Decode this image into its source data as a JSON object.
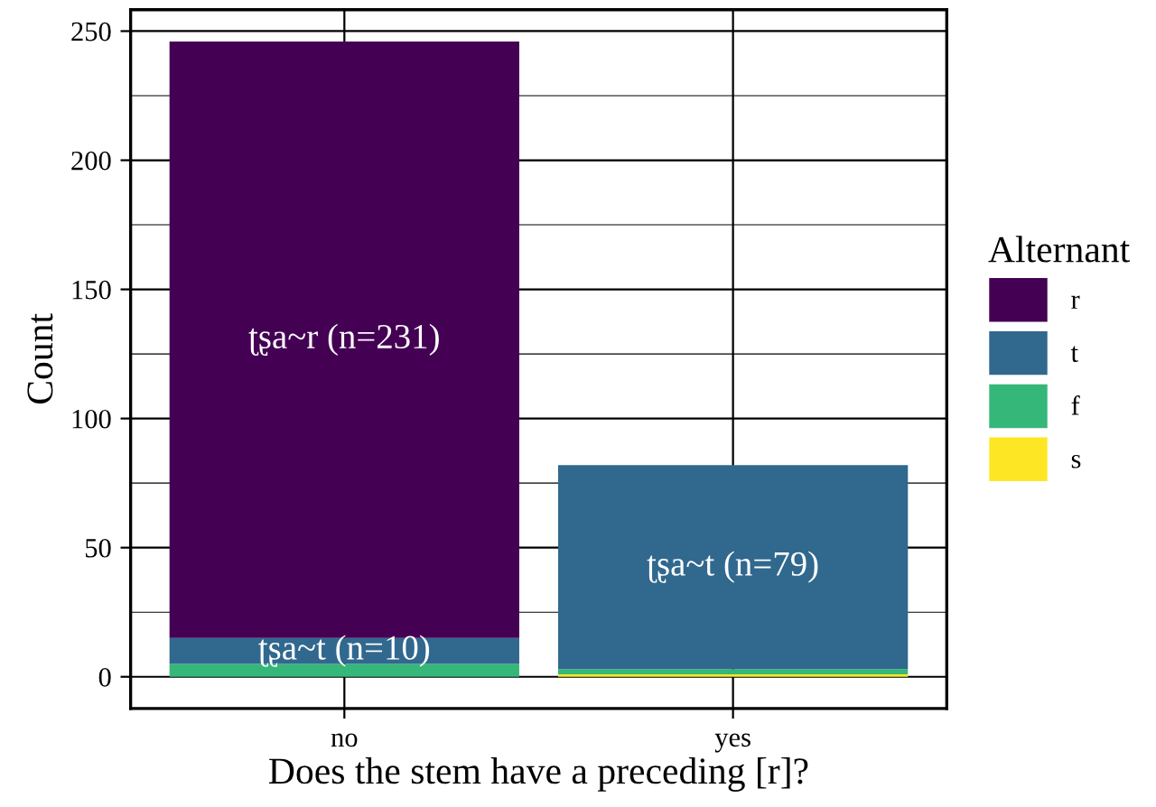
{
  "chart_data": {
    "type": "bar",
    "stacked": true,
    "xlabel": "Does the stem have a preceding [r]?",
    "ylabel": "Count",
    "legend_title": "Alternant",
    "categories": [
      "no",
      "yes"
    ],
    "series": [
      {
        "name": "s",
        "color": "#fde725",
        "values": [
          0,
          1
        ]
      },
      {
        "name": "f",
        "color": "#35b779",
        "values": [
          5,
          2
        ]
      },
      {
        "name": "t",
        "color": "#31688e",
        "values": [
          10,
          79
        ]
      },
      {
        "name": "r",
        "color": "#440154",
        "values": [
          231,
          0
        ]
      }
    ],
    "ylim": [
      -12.3,
      258.3
    ],
    "yticks": [
      0,
      50,
      100,
      150,
      200,
      250
    ],
    "grid": true,
    "legend": "right",
    "annotations": [
      "ʈʂa~r (n=231)",
      "ʈʂa~t (n=10)",
      "ʈʂa~t (n=79)"
    ]
  }
}
